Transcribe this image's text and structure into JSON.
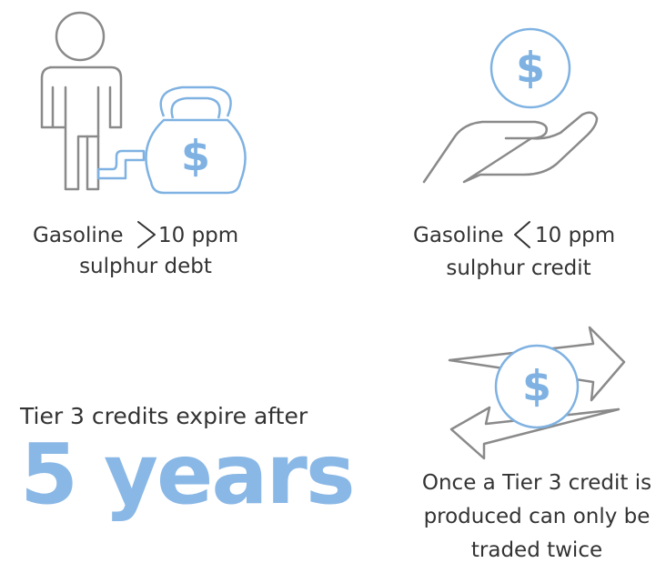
{
  "panels": [
    {
      "icon_symbol": "$",
      "line1_left": "Gasoline",
      "line1_right": "10 ppm",
      "line2": "sulphur debt"
    },
    {
      "icon_symbol": "$",
      "line1_left": "Gasoline",
      "line1_right": "10 ppm",
      "line2": "sulphur credit"
    },
    {
      "caption": "Tier 3 credits expire after",
      "highlight": "5 years"
    },
    {
      "icon_symbol": "$",
      "lines": [
        "Once a Tier 3 credit is",
        "produced can only be",
        "traded twice"
      ]
    }
  ]
}
